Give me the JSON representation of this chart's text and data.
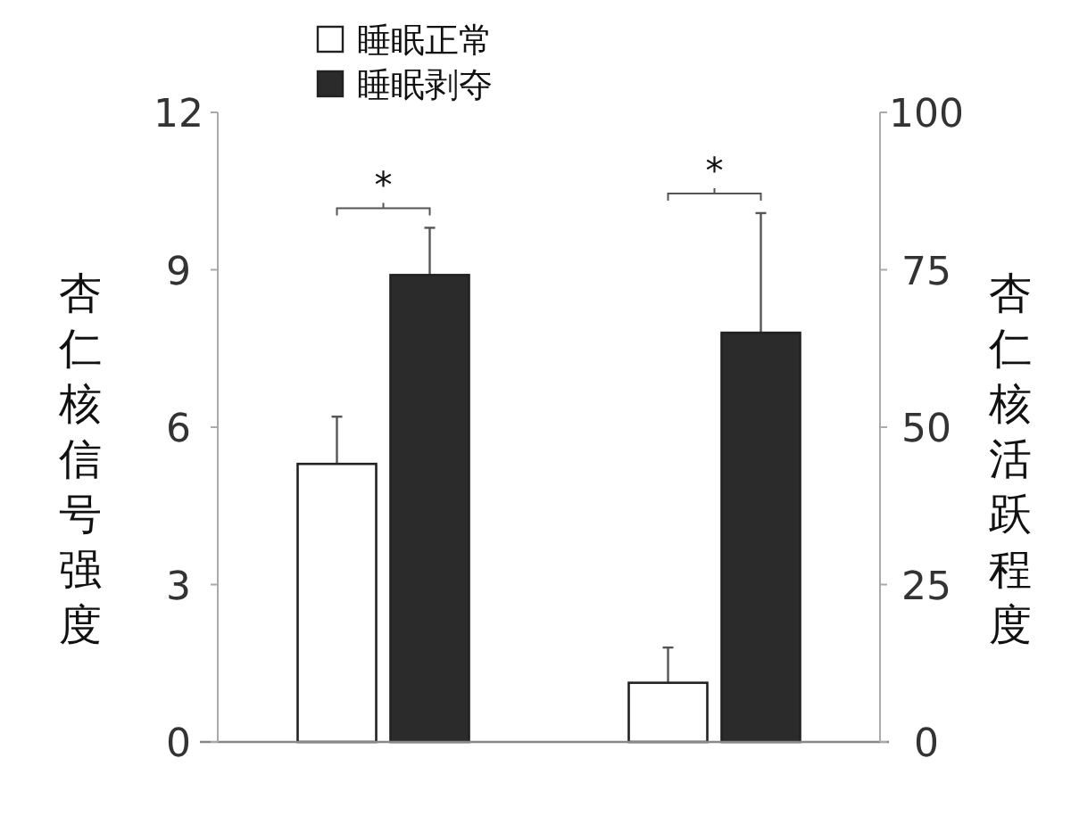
{
  "chart_data": {
    "type": "bar",
    "categories": [
      null,
      null
    ],
    "ylabel": "杏仁核信号强度",
    "y2label": "杏仁核活跃程度",
    "ylim": [
      0,
      12
    ],
    "yticks": [
      0,
      3,
      6,
      9,
      12
    ],
    "y2lim": [
      0,
      100
    ],
    "y2ticks": [
      0,
      25,
      50,
      75,
      100
    ],
    "series": [
      {
        "name": "睡眠正常",
        "color": "#ffffff",
        "values": [
          5.3,
          null
        ],
        "errors": [
          [
            5.3,
            6.2
          ],
          null
        ]
      },
      {
        "name": "睡眠剥夺",
        "color": "#2b2b2b",
        "values": [
          8.9,
          null
        ],
        "errors": [
          [
            8.9,
            9.8
          ],
          null
        ]
      },
      {
        "color": "#ffffff",
        "axis": "y2",
        "values": [
          null,
          9.4
        ],
        "errors": [
          null,
          [
            9.4,
            15
          ]
        ]
      },
      {
        "color": "#2b2b2b",
        "axis": "y2",
        "values": [
          null,
          65
        ],
        "errors": [
          null,
          [
            65,
            84
          ]
        ]
      }
    ],
    "annotations": [
      "*",
      "*"
    ],
    "legend": "top left"
  }
}
